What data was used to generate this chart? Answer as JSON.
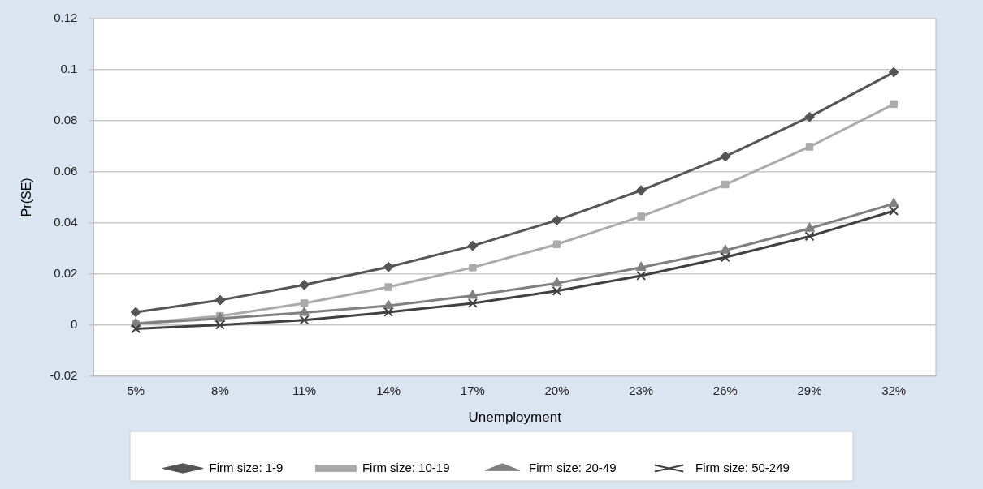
{
  "chart_data": {
    "type": "line",
    "xlabel": "Unemployment",
    "ylabel": "Pr(SE)",
    "categories": [
      "5%",
      "8%",
      "11%",
      "14%",
      "17%",
      "20%",
      "23%",
      "26%",
      "29%",
      "32%"
    ],
    "series": [
      {
        "name": "Firm size: 1-9",
        "color": "#555555",
        "marker": "diamond",
        "values": [
          0.005,
          0.0097,
          0.0157,
          0.0227,
          0.031,
          0.041,
          0.0527,
          0.066,
          0.0815,
          0.099
        ]
      },
      {
        "name": "Firm size: 10-19",
        "color": "#aaaaaa",
        "marker": "square",
        "values": [
          0.0005,
          0.0035,
          0.0085,
          0.0148,
          0.0225,
          0.0316,
          0.0425,
          0.055,
          0.0698,
          0.0865
        ]
      },
      {
        "name": "Firm size: 20-49",
        "color": "#808080",
        "marker": "triangle",
        "values": [
          0.0005,
          0.0025,
          0.0048,
          0.0075,
          0.0115,
          0.0163,
          0.0225,
          0.0292,
          0.0378,
          0.0475
        ]
      },
      {
        "name": "Firm size: 50-249",
        "color": "#404040",
        "marker": "cross",
        "values": [
          -0.0015,
          0,
          0.0019,
          0.005,
          0.0085,
          0.0133,
          0.0193,
          0.0265,
          0.0347,
          0.0447
        ]
      }
    ],
    "ylim": [
      -0.02,
      0.12
    ],
    "yticks": [
      -0.02,
      0,
      0.02,
      0.04,
      0.06,
      0.08,
      0.1,
      0.12
    ],
    "grid": "y",
    "legend": "bottom",
    "line_style": "solid"
  }
}
